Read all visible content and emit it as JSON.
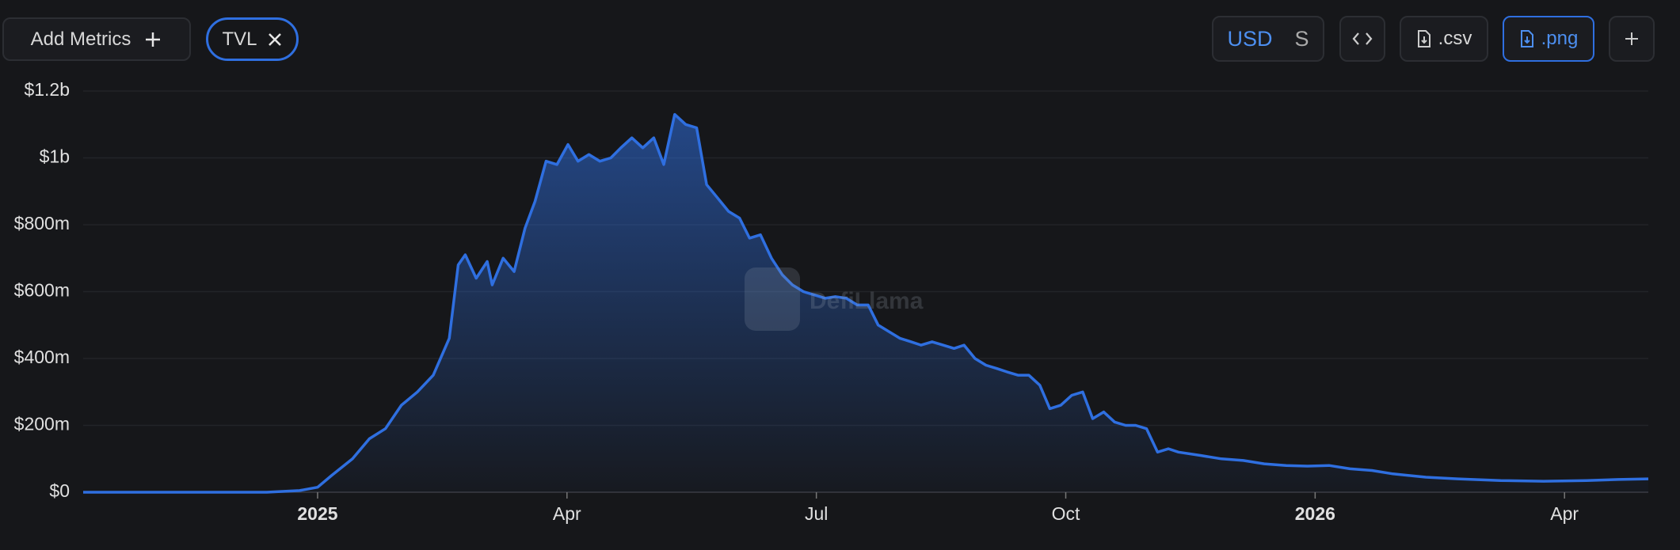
{
  "toolbar": {
    "add_metrics": "Add Metrics",
    "currency": "USD",
    "alt_unit": "S",
    "csv": ".csv",
    "png": ".png"
  },
  "watermark": "DefiLlama",
  "chart_data": {
    "type": "area",
    "x": [
      2024.765,
      2024.788,
      2024.842,
      2024.896,
      2024.949,
      2024.982,
      2025.0,
      2025.014,
      2025.035,
      2025.052,
      2025.068,
      2025.084,
      2025.1,
      2025.116,
      2025.132,
      2025.141,
      2025.148,
      2025.159,
      2025.17,
      2025.175,
      2025.186,
      2025.197,
      2025.208,
      2025.218,
      2025.229,
      2025.24,
      2025.251,
      2025.261,
      2025.272,
      2025.283,
      2025.294,
      2025.304,
      2025.315,
      2025.326,
      2025.337,
      2025.347,
      2025.358,
      2025.369,
      2025.38,
      2025.39,
      2025.401,
      2025.412,
      2025.423,
      2025.433,
      2025.444,
      2025.455,
      2025.466,
      2025.476,
      2025.487,
      2025.498,
      2025.509,
      2025.519,
      2025.53,
      2025.541,
      2025.552,
      2025.562,
      2025.573,
      2025.584,
      2025.595,
      2025.605,
      2025.616,
      2025.627,
      2025.638,
      2025.648,
      2025.659,
      2025.67,
      2025.681,
      2025.691,
      2025.702,
      2025.713,
      2025.724,
      2025.734,
      2025.745,
      2025.756,
      2025.767,
      2025.777,
      2025.788,
      2025.799,
      2025.81,
      2025.82,
      2025.831,
      2025.842,
      2025.853,
      2025.863,
      2025.885,
      2025.906,
      2025.928,
      2025.949,
      2025.971,
      2025.992,
      2026.014,
      2026.035,
      2026.057,
      2026.078,
      2026.111,
      2026.143,
      2026.186,
      2026.229,
      2026.272,
      2026.304,
      2026.334
    ],
    "series": [
      {
        "name": "TVL",
        "color": "#2f6fe0",
        "values": [
          0,
          0,
          0,
          0,
          0,
          5,
          15,
          50,
          100,
          160,
          190,
          260,
          300,
          350,
          460,
          680,
          710,
          640,
          690,
          620,
          700,
          660,
          790,
          870,
          990,
          980,
          1040,
          990,
          1010,
          990,
          1000,
          1030,
          1060,
          1030,
          1060,
          980,
          1130,
          1100,
          1090,
          920,
          880,
          840,
          820,
          760,
          770,
          700,
          650,
          620,
          600,
          590,
          580,
          585,
          580,
          560,
          560,
          500,
          480,
          460,
          450,
          440,
          450,
          440,
          430,
          440,
          400,
          380,
          370,
          360,
          350,
          350,
          320,
          250,
          260,
          290,
          300,
          220,
          240,
          210,
          200,
          200,
          190,
          120,
          130,
          120,
          110,
          100,
          95,
          85,
          80,
          78,
          80,
          70,
          65,
          55,
          45,
          40,
          35,
          33,
          35,
          38,
          40
        ]
      }
    ],
    "xlim": [
      2024.765,
      2026.334
    ],
    "xticks": [
      2025,
      {
        "value": 2025.25,
        "label": "Apr"
      },
      {
        "value": 2025.5,
        "label": "Jul"
      },
      {
        "value": 2025.75,
        "label": "Oct"
      },
      2026,
      {
        "value": 2026.25,
        "label": "Apr"
      }
    ],
    "ylim": [
      0,
      1200
    ],
    "yticks": [
      {
        "value": 0,
        "label": "$0"
      },
      {
        "value": 200,
        "label": "$200m"
      },
      {
        "value": 400,
        "label": "$400m"
      },
      {
        "value": 600,
        "label": "$600m"
      },
      {
        "value": 800,
        "label": "$800m"
      },
      {
        "value": 1000,
        "label": "$1b"
      },
      {
        "value": 1200,
        "label": "$1.2b"
      }
    ],
    "grid": true
  }
}
